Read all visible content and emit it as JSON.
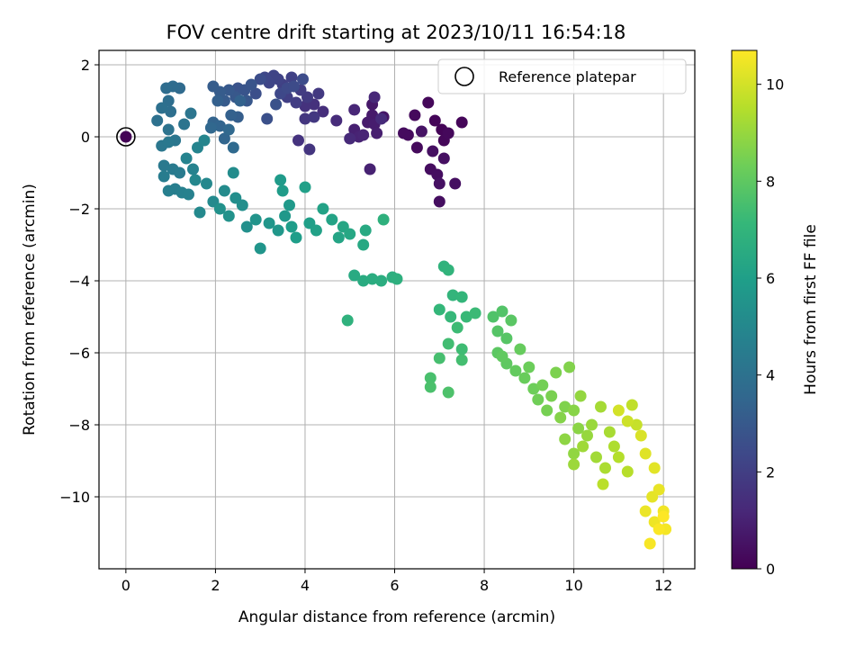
{
  "chart_data": {
    "type": "scatter",
    "title": "FOV centre drift starting at 2023/10/11 16:54:18",
    "xlabel": "Angular distance from reference (arcmin)",
    "ylabel": "Rotation from reference (arcmin)",
    "xlim": [
      -0.6,
      12.7
    ],
    "ylim": [
      -12.0,
      2.4
    ],
    "xticks": [
      0,
      2,
      4,
      6,
      8,
      10,
      12
    ],
    "yticks": [
      2,
      0,
      -2,
      -4,
      -6,
      -8,
      -10
    ],
    "xtick_labels": [
      "0",
      "2",
      "4",
      "6",
      "8",
      "10",
      "12"
    ],
    "ytick_labels": [
      "2",
      "0",
      "−2",
      "−4",
      "−6",
      "−8",
      "−10"
    ],
    "grid": true,
    "legend": {
      "position": "top-right",
      "entries": [
        "Reference platepar"
      ]
    },
    "reference_point": {
      "x": 0,
      "y": 0,
      "hours": 0
    },
    "colorbar": {
      "label": "Hours from first FF file",
      "range": [
        0,
        10.7
      ],
      "ticks": [
        0,
        2,
        4,
        6,
        8,
        10
      ],
      "tick_labels": [
        "0",
        "2",
        "4",
        "6",
        "8",
        "10"
      ],
      "colormap": "viridis"
    },
    "series": [
      {
        "points": [
          [
            0.0,
            0.0,
            0.05
          ],
          [
            7.05,
            0.2,
            0.1
          ],
          [
            6.9,
            0.45,
            0.12
          ],
          [
            7.5,
            0.4,
            0.15
          ],
          [
            7.1,
            -0.1,
            0.17
          ],
          [
            6.75,
            0.95,
            0.2
          ],
          [
            7.2,
            0.1,
            0.22
          ],
          [
            6.45,
            0.6,
            0.25
          ],
          [
            6.5,
            -0.3,
            0.27
          ],
          [
            6.3,
            0.05,
            0.3
          ],
          [
            6.2,
            0.1,
            0.32
          ],
          [
            6.8,
            -0.9,
            0.35
          ],
          [
            6.95,
            -1.05,
            0.38
          ],
          [
            7.0,
            -1.8,
            0.4
          ],
          [
            7.35,
            -1.3,
            0.42
          ],
          [
            7.1,
            -0.6,
            0.45
          ],
          [
            6.85,
            -0.4,
            0.47
          ],
          [
            7.0,
            -1.3,
            0.5
          ],
          [
            6.6,
            0.15,
            0.55
          ],
          [
            5.75,
            0.55,
            0.6
          ],
          [
            5.5,
            0.9,
            0.7
          ],
          [
            5.5,
            0.6,
            0.75
          ],
          [
            5.4,
            0.4,
            0.8
          ],
          [
            5.55,
            0.35,
            0.85
          ],
          [
            5.6,
            0.1,
            0.9
          ],
          [
            5.1,
            0.2,
            0.95
          ],
          [
            5.45,
            -0.9,
            1.0
          ],
          [
            5.2,
            0.0,
            1.05
          ],
          [
            5.3,
            0.05,
            1.1
          ],
          [
            5.1,
            0.75,
            1.15
          ],
          [
            5.55,
            1.1,
            1.2
          ],
          [
            5.0,
            -0.05,
            1.25
          ],
          [
            5.7,
            0.5,
            1.3
          ],
          [
            4.7,
            0.45,
            1.35
          ],
          [
            4.4,
            0.7,
            1.4
          ],
          [
            4.2,
            0.9,
            1.5
          ],
          [
            4.0,
            0.85,
            1.55
          ],
          [
            3.85,
            -0.1,
            1.6
          ],
          [
            4.1,
            -0.35,
            1.65
          ],
          [
            4.0,
            0.5,
            1.7
          ],
          [
            4.2,
            0.55,
            1.75
          ],
          [
            4.3,
            1.2,
            1.8
          ],
          [
            4.05,
            1.1,
            1.85
          ],
          [
            3.9,
            1.3,
            1.9
          ],
          [
            3.8,
            0.95,
            1.95
          ],
          [
            3.6,
            1.1,
            2.0
          ],
          [
            3.5,
            1.45,
            2.05
          ],
          [
            3.7,
            1.65,
            2.1
          ],
          [
            3.4,
            1.6,
            2.15
          ],
          [
            3.3,
            1.7,
            2.2
          ],
          [
            3.2,
            1.5,
            2.25
          ],
          [
            3.1,
            1.65,
            2.3
          ],
          [
            3.45,
            1.2,
            2.35
          ],
          [
            3.6,
            1.35,
            2.4
          ],
          [
            3.75,
            1.4,
            2.45
          ],
          [
            3.95,
            1.6,
            2.5
          ],
          [
            3.0,
            1.6,
            2.55
          ],
          [
            2.9,
            1.2,
            2.6
          ],
          [
            3.15,
            0.5,
            2.65
          ],
          [
            3.35,
            0.9,
            2.7
          ],
          [
            2.5,
            1.35,
            2.75
          ],
          [
            2.65,
            1.3,
            2.8
          ],
          [
            2.8,
            1.45,
            2.85
          ],
          [
            2.7,
            1.0,
            2.9
          ],
          [
            2.45,
            1.1,
            2.95
          ],
          [
            2.3,
            1.3,
            3.0
          ],
          [
            2.2,
            1.0,
            3.05
          ],
          [
            2.1,
            1.25,
            3.1
          ],
          [
            1.95,
            1.4,
            3.15
          ],
          [
            2.5,
            0.55,
            3.2
          ],
          [
            2.05,
            1.0,
            3.25
          ],
          [
            2.35,
            0.6,
            3.3
          ],
          [
            2.55,
            1.0,
            3.35
          ],
          [
            1.95,
            0.4,
            3.4
          ],
          [
            2.1,
            0.3,
            3.45
          ],
          [
            2.2,
            -0.05,
            3.5
          ],
          [
            1.9,
            0.25,
            3.55
          ],
          [
            2.3,
            0.2,
            3.6
          ],
          [
            2.4,
            -0.3,
            3.65
          ],
          [
            1.2,
            1.35,
            3.7
          ],
          [
            1.05,
            1.4,
            3.75
          ],
          [
            0.9,
            1.35,
            3.8
          ],
          [
            0.95,
            1.0,
            3.85
          ],
          [
            1.0,
            0.7,
            3.9
          ],
          [
            0.8,
            0.8,
            3.95
          ],
          [
            0.7,
            0.45,
            4.0
          ],
          [
            0.95,
            0.2,
            4.05
          ],
          [
            1.3,
            0.35,
            4.1
          ],
          [
            1.45,
            0.65,
            4.15
          ],
          [
            1.1,
            -0.1,
            4.2
          ],
          [
            0.8,
            -0.25,
            4.25
          ],
          [
            0.95,
            -0.15,
            4.3
          ],
          [
            0.85,
            -0.8,
            4.35
          ],
          [
            1.05,
            -0.9,
            4.4
          ],
          [
            1.2,
            -1.0,
            4.45
          ],
          [
            0.85,
            -1.1,
            4.5
          ],
          [
            1.1,
            -1.45,
            4.55
          ],
          [
            0.95,
            -1.5,
            4.6
          ],
          [
            1.25,
            -1.55,
            4.65
          ],
          [
            1.4,
            -1.6,
            4.7
          ],
          [
            1.5,
            -0.9,
            4.75
          ],
          [
            1.35,
            -0.6,
            4.8
          ],
          [
            1.6,
            -0.3,
            4.85
          ],
          [
            1.75,
            -0.1,
            4.9
          ],
          [
            1.55,
            -1.2,
            4.95
          ],
          [
            1.8,
            -1.3,
            5.0
          ],
          [
            1.65,
            -2.1,
            5.05
          ],
          [
            1.95,
            -1.8,
            5.1
          ],
          [
            2.2,
            -1.5,
            5.15
          ],
          [
            2.4,
            -1.0,
            5.2
          ],
          [
            2.45,
            -1.7,
            5.25
          ],
          [
            2.6,
            -1.9,
            5.3
          ],
          [
            2.7,
            -2.5,
            5.35
          ],
          [
            2.1,
            -2.0,
            5.4
          ],
          [
            2.3,
            -2.2,
            5.45
          ],
          [
            2.9,
            -2.3,
            5.5
          ],
          [
            3.0,
            -3.1,
            5.55
          ],
          [
            3.2,
            -2.4,
            5.6
          ],
          [
            3.4,
            -2.6,
            5.65
          ],
          [
            3.55,
            -2.2,
            5.7
          ],
          [
            3.65,
            -1.9,
            5.75
          ],
          [
            3.45,
            -1.2,
            5.8
          ],
          [
            3.5,
            -1.5,
            5.85
          ],
          [
            3.7,
            -2.5,
            5.9
          ],
          [
            3.8,
            -2.8,
            5.95
          ],
          [
            4.1,
            -2.4,
            6.0
          ],
          [
            4.0,
            -1.4,
            6.05
          ],
          [
            4.25,
            -2.6,
            6.1
          ],
          [
            4.4,
            -2.0,
            6.15
          ],
          [
            4.6,
            -2.3,
            6.2
          ],
          [
            4.75,
            -2.8,
            6.25
          ],
          [
            4.85,
            -2.5,
            6.3
          ],
          [
            5.0,
            -2.7,
            6.35
          ],
          [
            5.3,
            -3.0,
            6.4
          ],
          [
            5.35,
            -2.6,
            6.45
          ],
          [
            5.1,
            -3.85,
            6.5
          ],
          [
            5.3,
            -4.0,
            6.55
          ],
          [
            5.5,
            -3.95,
            6.6
          ],
          [
            5.7,
            -4.0,
            6.65
          ],
          [
            5.95,
            -3.9,
            6.7
          ],
          [
            6.05,
            -3.95,
            6.75
          ],
          [
            5.75,
            -2.3,
            6.8
          ],
          [
            4.95,
            -5.1,
            6.85
          ]
        ]
      },
      {
        "points": [
          [
            7.1,
            -3.6,
            6.9
          ],
          [
            7.2,
            -3.7,
            6.95
          ],
          [
            7.3,
            -4.4,
            7.0
          ],
          [
            7.5,
            -4.45,
            7.05
          ],
          [
            7.0,
            -4.8,
            7.1
          ],
          [
            7.25,
            -5.0,
            7.15
          ],
          [
            7.6,
            -5.0,
            7.2
          ],
          [
            7.8,
            -4.9,
            7.25
          ],
          [
            7.4,
            -5.3,
            7.3
          ],
          [
            7.5,
            -5.9,
            7.35
          ],
          [
            7.2,
            -5.75,
            7.4
          ],
          [
            7.5,
            -6.2,
            7.45
          ],
          [
            7.0,
            -6.15,
            7.5
          ],
          [
            6.8,
            -6.7,
            7.55
          ],
          [
            6.8,
            -6.95,
            7.6
          ],
          [
            7.2,
            -7.1,
            7.65
          ],
          [
            8.2,
            -5.0,
            7.7
          ],
          [
            8.4,
            -4.85,
            7.75
          ],
          [
            8.3,
            -5.4,
            7.8
          ],
          [
            8.5,
            -5.6,
            7.85
          ],
          [
            8.6,
            -5.1,
            7.9
          ],
          [
            8.3,
            -6.0,
            7.95
          ],
          [
            8.5,
            -6.3,
            8.0
          ],
          [
            8.4,
            -6.1,
            8.05
          ],
          [
            8.7,
            -6.5,
            8.1
          ],
          [
            8.8,
            -5.9,
            8.15
          ],
          [
            8.9,
            -6.7,
            8.2
          ],
          [
            9.0,
            -6.4,
            8.25
          ],
          [
            9.1,
            -7.0,
            8.3
          ],
          [
            9.2,
            -7.3,
            8.35
          ],
          [
            9.3,
            -6.9,
            8.4
          ],
          [
            9.4,
            -7.6,
            8.45
          ],
          [
            9.5,
            -7.2,
            8.5
          ],
          [
            9.6,
            -6.55,
            8.55
          ],
          [
            9.8,
            -7.5,
            8.6
          ],
          [
            9.9,
            -6.4,
            8.65
          ],
          [
            9.7,
            -7.8,
            8.7
          ],
          [
            10.0,
            -7.6,
            8.75
          ],
          [
            10.1,
            -8.1,
            8.8
          ],
          [
            9.8,
            -8.4,
            8.85
          ],
          [
            10.0,
            -8.8,
            8.9
          ],
          [
            10.15,
            -7.2,
            8.95
          ],
          [
            10.3,
            -8.3,
            9.0
          ],
          [
            10.4,
            -8.0,
            9.05
          ],
          [
            10.0,
            -9.1,
            9.1
          ],
          [
            10.2,
            -8.6,
            9.15
          ],
          [
            10.5,
            -8.9,
            9.2
          ],
          [
            10.6,
            -7.5,
            9.25
          ],
          [
            10.8,
            -8.2,
            9.3
          ],
          [
            10.7,
            -9.2,
            9.35
          ],
          [
            10.9,
            -8.6,
            9.4
          ],
          [
            11.0,
            -8.9,
            9.5
          ],
          [
            11.2,
            -9.3,
            9.55
          ],
          [
            10.65,
            -9.65,
            9.6
          ],
          [
            11.3,
            -7.45,
            9.7
          ],
          [
            11.4,
            -8.0,
            9.8
          ],
          [
            11.2,
            -7.9,
            9.9
          ],
          [
            11.0,
            -7.6,
            10.0
          ],
          [
            11.5,
            -8.3,
            10.1
          ],
          [
            11.6,
            -8.8,
            10.2
          ],
          [
            11.8,
            -9.2,
            10.25
          ],
          [
            11.75,
            -10.0,
            10.3
          ],
          [
            11.9,
            -9.8,
            10.35
          ],
          [
            11.6,
            -10.4,
            10.4
          ],
          [
            11.8,
            -10.7,
            10.45
          ],
          [
            12.0,
            -10.4,
            10.5
          ],
          [
            12.05,
            -10.9,
            10.55
          ],
          [
            11.7,
            -11.3,
            10.6
          ],
          [
            11.9,
            -10.9,
            10.65
          ],
          [
            12.0,
            -10.55,
            10.7
          ]
        ]
      }
    ]
  },
  "colors": {
    "axis": "#000000",
    "grid": "#b0b0b0",
    "reference_marker": "#000000",
    "viridis": [
      "#440154",
      "#482878",
      "#3e4989",
      "#31688e",
      "#26828e",
      "#1f9e89",
      "#35b779",
      "#6ece58",
      "#b5de2b",
      "#fde725"
    ]
  }
}
